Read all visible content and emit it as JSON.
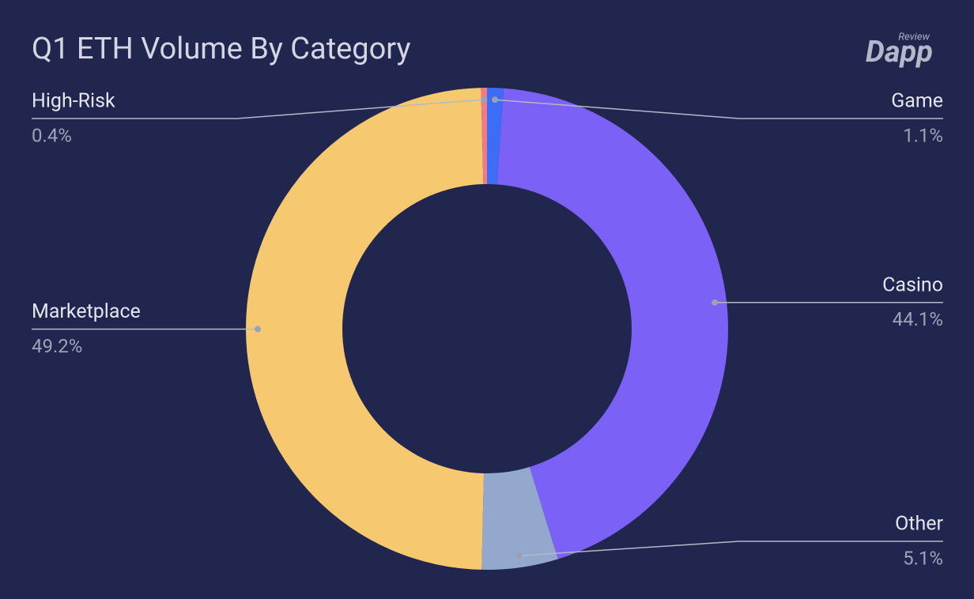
{
  "chart_data": {
    "type": "donut",
    "title": "Q1 ETH Volume By Category",
    "categories": [
      "Game",
      "Casino",
      "Other",
      "Marketplace",
      "High-Risk"
    ],
    "values": [
      1.1,
      44.1,
      5.1,
      49.2,
      0.4
    ],
    "value_labels": [
      "1.1%",
      "44.1%",
      "5.1%",
      "49.2%",
      "0.4%"
    ],
    "colors": [
      "#3d6cf7",
      "#7b61f5",
      "#93a8cc",
      "#f6c870",
      "#ef7b86"
    ]
  },
  "logo": {
    "text": "Dapp",
    "caption": "Review"
  }
}
